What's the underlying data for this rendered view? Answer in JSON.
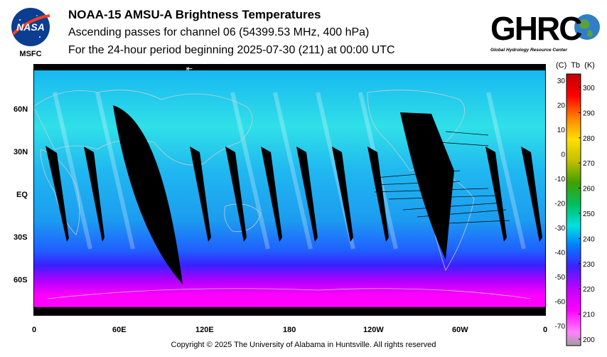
{
  "header": {
    "title": "NOAA-15 AMSU-A Brightness Temperatures",
    "subtitle1": "Ascending passes for channel 06 (54399.53 MHz, 400 hPa)",
    "subtitle2": "For the 24-hour period beginning 2025-07-30 (211) at 00:00 UTC"
  },
  "logos": {
    "nasa_text": "NASA",
    "nasa_sub": "MSFC",
    "ghrc_text": "GHRC",
    "ghrc_sub": "Global Hydrology Resource Center"
  },
  "map": {
    "arrow_glyph": "⇤",
    "lat_labels": [
      "60N",
      "30N",
      "EQ",
      "30S",
      "60S"
    ],
    "lon_labels": [
      "0",
      "60E",
      "120E",
      "180",
      "120W",
      "60W",
      "0"
    ]
  },
  "colorbar": {
    "header_c": "(C)",
    "header_tb": "Tb",
    "header_k": "(K)",
    "celsius_ticks": [
      "30",
      "20",
      "10",
      "0",
      "-10",
      "-20",
      "-30",
      "-40",
      "-50",
      "-60",
      "-70"
    ],
    "kelvin_ticks": [
      "300",
      "290",
      "280",
      "270",
      "260",
      "250",
      "240",
      "230",
      "220",
      "210",
      "200"
    ],
    "colors": [
      "#ff00ff",
      "#c000ff",
      "#4020ff",
      "#0050ff",
      "#00a8ff",
      "#00e0e0",
      "#00c080",
      "#40a000",
      "#b0b000",
      "#ffe000",
      "#ff8000",
      "#ff0000",
      "#c00000"
    ]
  },
  "footer": "Copyright © 2025 The University of Alabama in Huntsville.  All rights reserved"
}
